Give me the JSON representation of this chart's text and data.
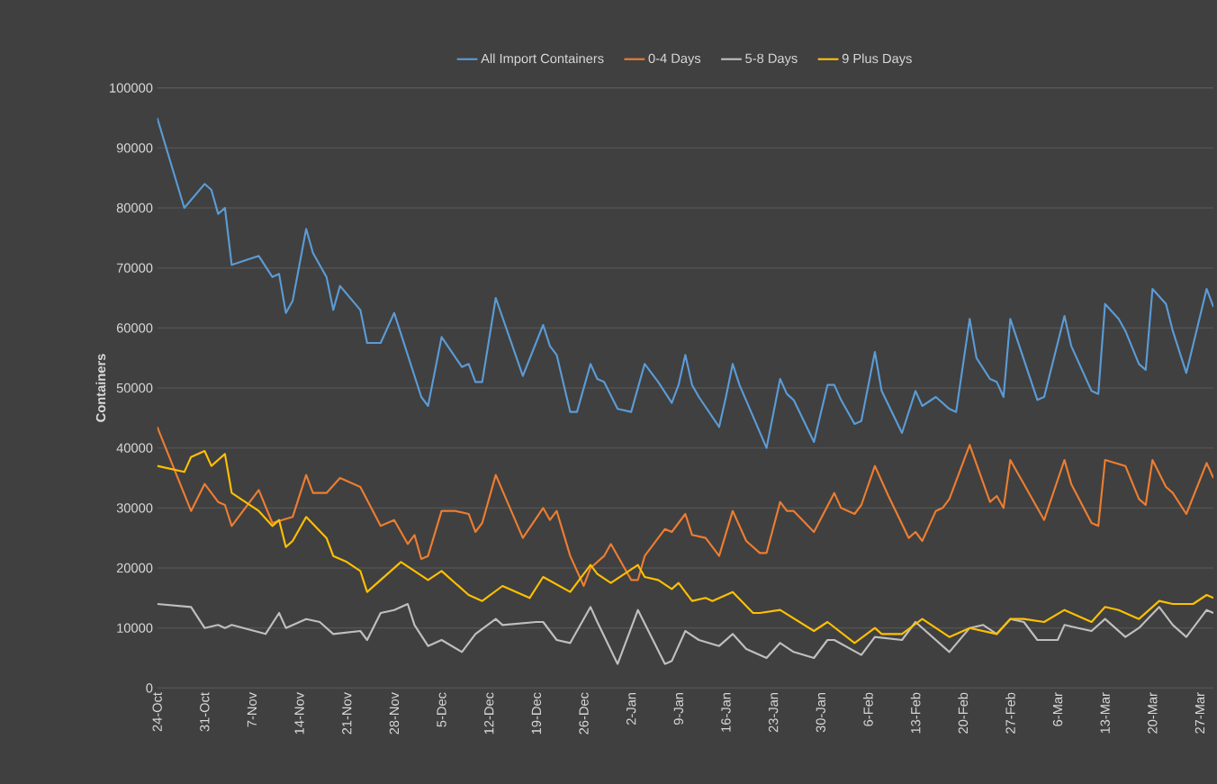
{
  "chart_data": {
    "type": "line",
    "ylabel": "Containers",
    "legend": "top",
    "grid": "y",
    "marker": "none",
    "line_style": "solid",
    "ylim": [
      0,
      100000
    ],
    "yticks": [
      0,
      10000,
      20000,
      30000,
      40000,
      50000,
      60000,
      70000,
      80000,
      90000,
      100000
    ],
    "categories": [
      "24-Oct",
      null,
      null,
      null,
      null,
      null,
      null,
      "31-Oct",
      null,
      null,
      null,
      null,
      null,
      null,
      "7-Nov",
      null,
      null,
      null,
      null,
      null,
      null,
      "14-Nov",
      null,
      null,
      null,
      null,
      null,
      null,
      "21-Nov",
      null,
      null,
      null,
      null,
      null,
      null,
      "28-Nov",
      null,
      null,
      null,
      null,
      null,
      null,
      "5-Dec",
      null,
      null,
      null,
      null,
      null,
      null,
      "12-Dec",
      null,
      null,
      null,
      null,
      null,
      null,
      "19-Dec",
      null,
      null,
      null,
      null,
      null,
      null,
      "26-Dec",
      null,
      null,
      null,
      null,
      null,
      null,
      "2-Jan",
      null,
      null,
      null,
      null,
      null,
      null,
      "9-Jan",
      null,
      null,
      null,
      null,
      null,
      null,
      "16-Jan",
      null,
      null,
      null,
      null,
      null,
      null,
      "23-Jan",
      null,
      null,
      null,
      null,
      null,
      null,
      "30-Jan",
      null,
      null,
      null,
      null,
      null,
      null,
      "6-Feb",
      null,
      null,
      null,
      null,
      null,
      null,
      "13-Feb",
      null,
      null,
      null,
      null,
      null,
      null,
      "20-Feb",
      null,
      null,
      null,
      null,
      null,
      null,
      "27-Feb",
      null,
      null,
      null,
      null,
      null,
      null,
      "6-Mar",
      null,
      null,
      null,
      null,
      null,
      null,
      "13-Mar",
      null,
      null,
      null,
      null,
      null,
      null,
      "20-Mar",
      null,
      null,
      null,
      null,
      null,
      null,
      "27-Mar",
      null,
      null
    ],
    "series": [
      {
        "name": "All Import Containers",
        "color": "#5b9bd5",
        "values": [
          95000,
          null,
          null,
          null,
          80000,
          null,
          null,
          84000,
          83000,
          79000,
          80000,
          70500,
          null,
          null,
          null,
          72000,
          null,
          68500,
          69000,
          62500,
          64500,
          null,
          76500,
          72500,
          null,
          68500,
          63000,
          67000,
          null,
          null,
          63000,
          57500,
          null,
          57500,
          null,
          62500,
          null,
          null,
          null,
          48500,
          47000,
          null,
          58500,
          null,
          null,
          53500,
          54000,
          51000,
          51000,
          null,
          65000,
          null,
          null,
          null,
          52000,
          null,
          null,
          60500,
          57000,
          55500,
          null,
          46000,
          46000,
          null,
          54000,
          51500,
          51000,
          null,
          46500,
          null,
          46000,
          null,
          54000,
          null,
          51000,
          null,
          47500,
          50500,
          55500,
          50500,
          48500,
          null,
          null,
          43500,
          48500,
          54000,
          50500,
          null,
          null,
          null,
          40000,
          null,
          51500,
          49000,
          48000,
          null,
          null,
          41000,
          null,
          50500,
          50500,
          48000,
          null,
          44000,
          44500,
          null,
          56000,
          49500,
          null,
          null,
          42500,
          null,
          49500,
          47000,
          null,
          48500,
          null,
          46500,
          46000,
          null,
          61500,
          55000,
          null,
          51500,
          51000,
          48500,
          61500,
          null,
          null,
          null,
          48000,
          48500,
          null,
          null,
          62000,
          57000,
          null,
          null,
          49500,
          49000,
          64000,
          null,
          61500,
          59500,
          null,
          54000,
          53000,
          66500,
          null,
          64000,
          59500,
          null,
          52500,
          null,
          null,
          66500,
          63500
        ]
      },
      {
        "name": "0-4 Days",
        "color": "#ed7d31",
        "values": [
          43500,
          null,
          null,
          null,
          null,
          29500,
          null,
          34000,
          null,
          31000,
          30500,
          27000,
          null,
          null,
          null,
          33000,
          null,
          27500,
          null,
          null,
          28500,
          null,
          35500,
          32500,
          null,
          32500,
          null,
          35000,
          null,
          null,
          33500,
          null,
          null,
          27000,
          null,
          28000,
          null,
          24000,
          25500,
          21500,
          22000,
          null,
          29500,
          null,
          29500,
          null,
          29000,
          26000,
          27500,
          null,
          35500,
          null,
          null,
          null,
          25000,
          null,
          null,
          30000,
          28000,
          29500,
          null,
          22000,
          null,
          17000,
          20000,
          null,
          22000,
          24000,
          null,
          null,
          18000,
          18000,
          22000,
          null,
          null,
          26500,
          26000,
          null,
          29000,
          25500,
          null,
          25000,
          null,
          22000,
          null,
          29500,
          null,
          24500,
          null,
          22500,
          22500,
          null,
          31000,
          29500,
          29500,
          null,
          null,
          26000,
          null,
          null,
          32500,
          30000,
          null,
          29000,
          30500,
          null,
          37000,
          null,
          32000,
          null,
          null,
          25000,
          26000,
          24500,
          null,
          29500,
          30000,
          31500,
          null,
          null,
          40500,
          null,
          null,
          31000,
          32000,
          30000,
          38000,
          null,
          null,
          null,
          null,
          28000,
          null,
          null,
          38000,
          34000,
          null,
          null,
          27500,
          27000,
          38000,
          null,
          null,
          37000,
          null,
          31500,
          30500,
          38000,
          null,
          33500,
          32500,
          null,
          29000,
          null,
          null,
          37500,
          35000
        ]
      },
      {
        "name": "5-8 Days",
        "color": "#bfbfbf",
        "values": [
          14000,
          null,
          null,
          null,
          null,
          13500,
          null,
          10000,
          null,
          10500,
          10000,
          10500,
          null,
          null,
          null,
          null,
          9000,
          null,
          12500,
          10000,
          null,
          null,
          11500,
          null,
          11000,
          null,
          9000,
          null,
          null,
          null,
          9500,
          8000,
          null,
          12500,
          null,
          13000,
          null,
          14000,
          10500,
          null,
          7000,
          null,
          8000,
          null,
          null,
          6000,
          null,
          9000,
          null,
          null,
          11500,
          10500,
          null,
          null,
          null,
          null,
          11000,
          11000,
          null,
          8000,
          null,
          7500,
          null,
          null,
          13500,
          11000,
          null,
          null,
          4000,
          null,
          null,
          13000,
          null,
          null,
          null,
          4000,
          4500,
          null,
          9500,
          null,
          8000,
          null,
          null,
          7000,
          null,
          9000,
          null,
          6500,
          null,
          null,
          5000,
          null,
          7500,
          null,
          6000,
          null,
          null,
          5000,
          null,
          8000,
          8000,
          null,
          null,
          null,
          5500,
          null,
          8500,
          null,
          null,
          null,
          8000,
          null,
          11000,
          null,
          null,
          null,
          null,
          6000,
          null,
          null,
          10000,
          null,
          10500,
          null,
          9000,
          null,
          11500,
          null,
          11000,
          null,
          8000,
          null,
          null,
          8000,
          10500,
          null,
          10000,
          null,
          9500,
          null,
          11500,
          null,
          null,
          8500,
          null,
          10000,
          null,
          null,
          13500,
          null,
          10500,
          null,
          8500,
          null,
          null,
          13000,
          12500
        ]
      },
      {
        "name": "9 Plus Days",
        "color": "#ffc000",
        "values": [
          37000,
          null,
          null,
          null,
          36000,
          38500,
          null,
          39500,
          37000,
          null,
          39000,
          32500,
          null,
          null,
          null,
          29500,
          null,
          27000,
          28000,
          23500,
          24500,
          null,
          28500,
          null,
          null,
          25000,
          22000,
          null,
          21000,
          null,
          19500,
          16000,
          null,
          null,
          null,
          null,
          21000,
          null,
          null,
          null,
          18000,
          null,
          19500,
          null,
          null,
          null,
          15500,
          null,
          14500,
          null,
          null,
          17000,
          null,
          null,
          null,
          15000,
          null,
          18500,
          null,
          null,
          null,
          16000,
          null,
          null,
          20500,
          19000,
          null,
          17500,
          null,
          null,
          null,
          20500,
          18500,
          null,
          18000,
          null,
          16500,
          17500,
          null,
          14500,
          null,
          15000,
          14500,
          null,
          null,
          16000,
          null,
          null,
          12500,
          12500,
          null,
          null,
          13000,
          null,
          null,
          null,
          null,
          9500,
          null,
          11000,
          null,
          null,
          null,
          7500,
          null,
          null,
          10000,
          9000,
          null,
          null,
          9000,
          null,
          null,
          11500,
          null,
          null,
          null,
          8500,
          null,
          null,
          10000,
          null,
          null,
          null,
          9000,
          null,
          11500,
          null,
          11500,
          null,
          null,
          11000,
          null,
          null,
          13000,
          null,
          null,
          null,
          11000,
          null,
          13500,
          null,
          13000,
          null,
          null,
          11500,
          null,
          null,
          14500,
          null,
          14000,
          null,
          null,
          14000,
          null,
          15500,
          15000
        ]
      }
    ]
  }
}
